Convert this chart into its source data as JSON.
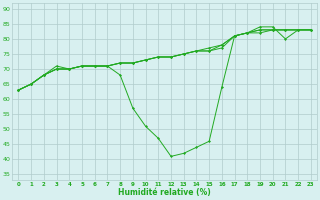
{
  "x": [
    0,
    1,
    2,
    3,
    4,
    5,
    6,
    7,
    8,
    9,
    10,
    11,
    12,
    13,
    14,
    15,
    16,
    17,
    18,
    19,
    20,
    21,
    22,
    23
  ],
  "line1": [
    63,
    65,
    68,
    71,
    70,
    71,
    71,
    71,
    68,
    57,
    51,
    47,
    41,
    42,
    44,
    46,
    64,
    81,
    82,
    84,
    84,
    80,
    83,
    83
  ],
  "line2": [
    63,
    65,
    68,
    70,
    70,
    71,
    71,
    71,
    72,
    72,
    73,
    74,
    74,
    75,
    76,
    76,
    77,
    81,
    82,
    82,
    83,
    83,
    83,
    83
  ],
  "line3": [
    63,
    65,
    68,
    70,
    70,
    71,
    71,
    71,
    72,
    72,
    73,
    74,
    74,
    75,
    76,
    76,
    78,
    81,
    82,
    83,
    83,
    83,
    83,
    83
  ],
  "line4": [
    63,
    65,
    68,
    70,
    70,
    71,
    71,
    71,
    72,
    72,
    73,
    74,
    74,
    75,
    76,
    77,
    78,
    81,
    82,
    83,
    83,
    83,
    83,
    83
  ],
  "line_color": "#22aa22",
  "bg_color": "#d8f0f0",
  "grid_color": "#b0cccc",
  "xlabel": "Humidité relative (%)",
  "xlim": [
    -0.5,
    23.5
  ],
  "ylim": [
    33,
    92
  ],
  "yticks": [
    35,
    40,
    45,
    50,
    55,
    60,
    65,
    70,
    75,
    80,
    85,
    90
  ],
  "xticks": [
    0,
    1,
    2,
    3,
    4,
    5,
    6,
    7,
    8,
    9,
    10,
    11,
    12,
    13,
    14,
    15,
    16,
    17,
    18,
    19,
    20,
    21,
    22,
    23
  ]
}
